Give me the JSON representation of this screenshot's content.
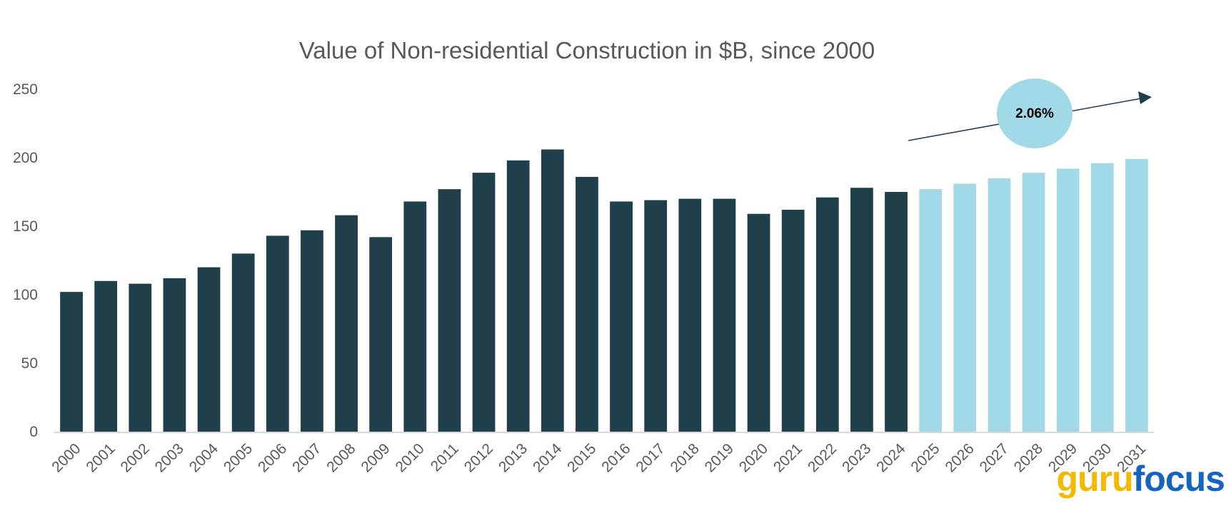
{
  "chart_data": {
    "type": "bar",
    "title": "Value of Non-residential Construction in $B, since 2000",
    "xlabel": "",
    "ylabel": "",
    "ylim": [
      0,
      250
    ],
    "yticks": [
      0,
      50,
      100,
      150,
      200,
      250
    ],
    "grid": false,
    "legend": "none",
    "categories": [
      "2000",
      "2001",
      "2002",
      "2003",
      "2004",
      "2005",
      "2006",
      "2007",
      "2008",
      "2009",
      "2010",
      "2011",
      "2012",
      "2013",
      "2014",
      "2015",
      "2016",
      "2017",
      "2018",
      "2019",
      "2020",
      "2021",
      "2022",
      "2023",
      "2024",
      "2025",
      "2026",
      "2027",
      "2028",
      "2029",
      "2030",
      "2031"
    ],
    "values": [
      102,
      110,
      108,
      112,
      120,
      130,
      143,
      147,
      158,
      142,
      168,
      177,
      189,
      198,
      206,
      186,
      168,
      169,
      170,
      170,
      159,
      162,
      171,
      178,
      175,
      177,
      181,
      185,
      189,
      192,
      196,
      199
    ],
    "bar_colors": {
      "historical": "#1f3f4b",
      "forecast": "#a2d9e6"
    },
    "first_forecast_category": "2025",
    "annotation": {
      "text": "2.06%",
      "shape": "ellipse",
      "fill": "#a2d9e6",
      "arrow_color": "#1f3f4b"
    }
  },
  "watermark": {
    "part1": "guru",
    "part2": "focus",
    "color1": "#f5b800",
    "color2": "#1565c0"
  }
}
